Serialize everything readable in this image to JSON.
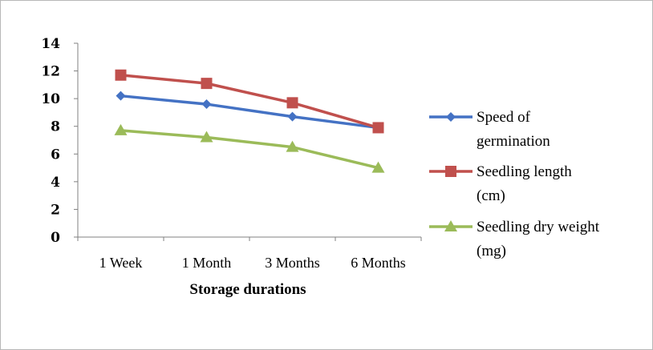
{
  "chart_data": {
    "type": "line",
    "title": "",
    "xlabel": "Storage durations",
    "ylabel": "",
    "categories": [
      "1 Week",
      "1 Month",
      "3 Months",
      "6 Months"
    ],
    "ylim": [
      0,
      14
    ],
    "yticks": [
      0,
      2,
      4,
      6,
      8,
      10,
      12,
      14
    ],
    "grid": false,
    "legend_position": "right",
    "series": [
      {
        "name": "Speed of germination",
        "name_lines": [
          "Speed of",
          "germination"
        ],
        "values": [
          10.2,
          9.6,
          8.7,
          7.9
        ],
        "color": "#4472c4",
        "marker": "diamond"
      },
      {
        "name": "Seedling length (cm)",
        "name_lines": [
          "Seedling length",
          "(cm)"
        ],
        "values": [
          11.7,
          11.1,
          9.7,
          7.9
        ],
        "color": "#c0504d",
        "marker": "square"
      },
      {
        "name": "Seedling dry weight (mg)",
        "name_lines": [
          "Seedling dry weight",
          "(mg)"
        ],
        "values": [
          7.7,
          7.2,
          6.5,
          5.0
        ],
        "color": "#9bbb59",
        "marker": "triangle"
      }
    ]
  }
}
